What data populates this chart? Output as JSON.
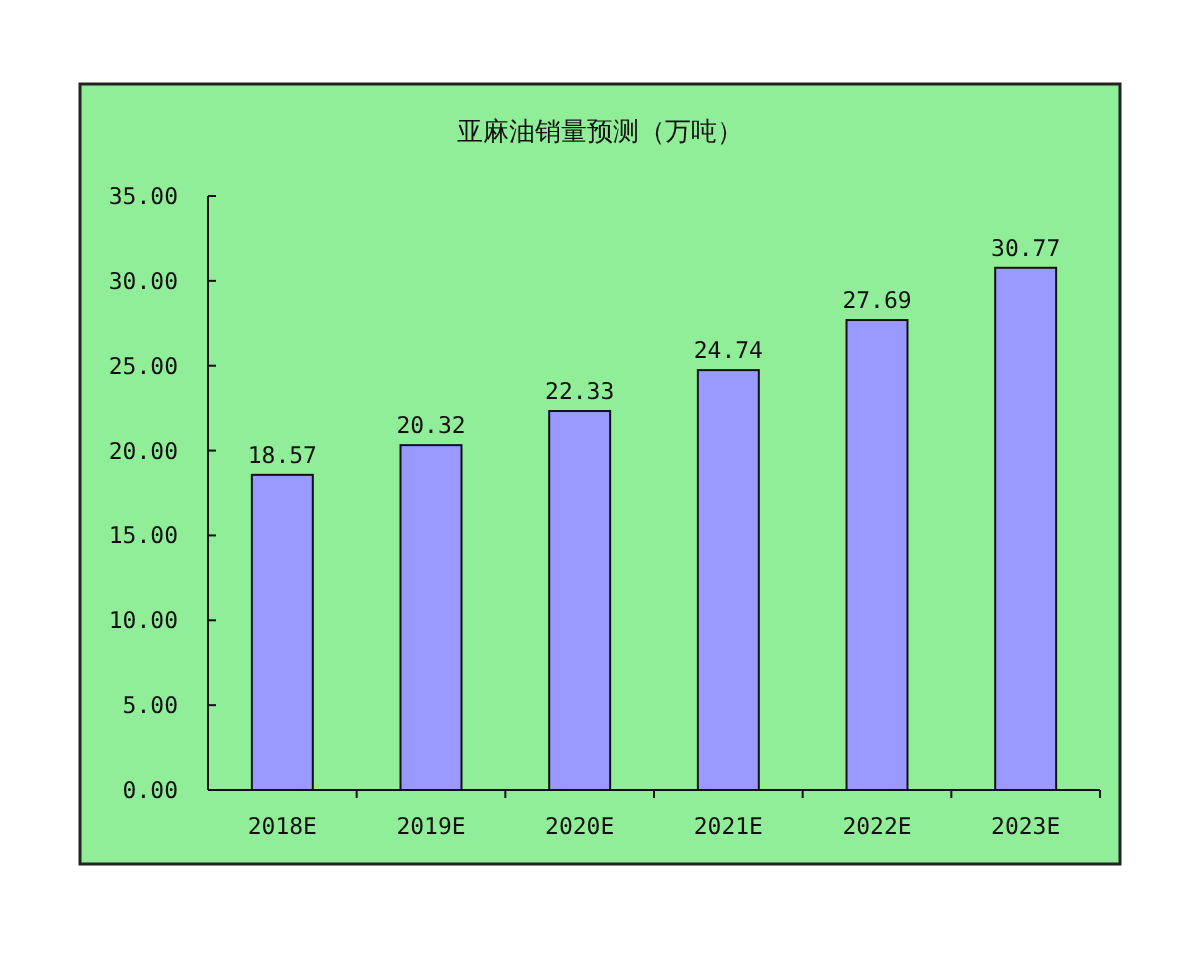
{
  "chart_data": {
    "type": "bar",
    "title": "亚麻油销量预测（万吨）",
    "categories": [
      "2018E",
      "2019E",
      "2020E",
      "2021E",
      "2022E",
      "2023E"
    ],
    "values": [
      18.57,
      20.32,
      22.33,
      24.74,
      27.69,
      30.77
    ],
    "color": "#9999ff",
    "ylim": [
      0,
      35
    ],
    "yticks": [
      {
        "value": 0,
        "label": "0.00"
      },
      {
        "value": 5,
        "label": "5.00"
      },
      {
        "value": 10,
        "label": "10.00"
      },
      {
        "value": 15,
        "label": "15.00"
      },
      {
        "value": 20,
        "label": "20.00"
      },
      {
        "value": 25,
        "label": "25.00"
      },
      {
        "value": 30,
        "label": "30.00"
      },
      {
        "value": 35,
        "label": "35.00"
      }
    ],
    "data_labels": true
  }
}
